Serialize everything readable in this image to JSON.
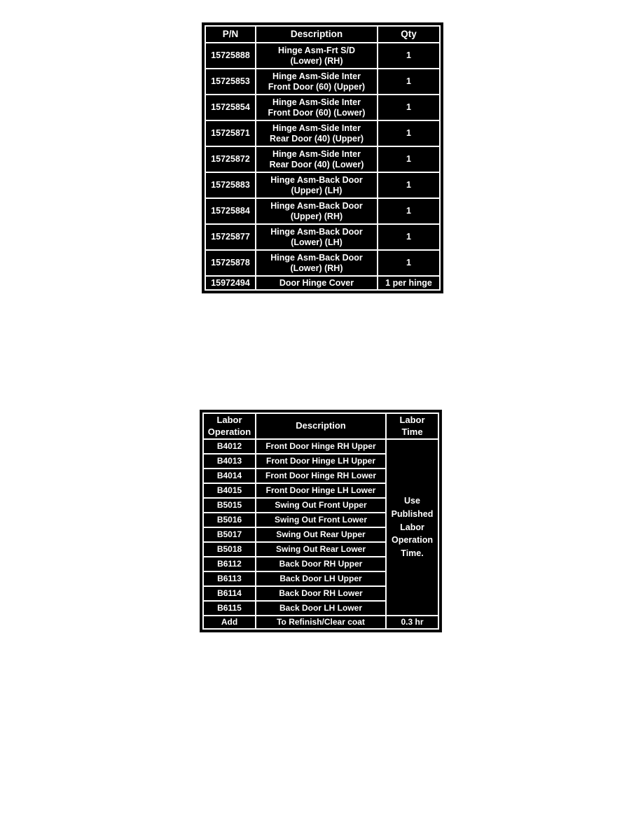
{
  "colors": {
    "page_bg": "#ffffff",
    "table_bg": "#000000",
    "table_border": "#ffffff",
    "table_text": "#ffffff"
  },
  "parts_table": {
    "headers": {
      "pn": "P/N",
      "description": "Description",
      "qty": "Qty"
    },
    "rows": [
      {
        "pn": "15725888",
        "description": "Hinge Asm-Frt S/D\n(Lower) (RH)",
        "qty": "1"
      },
      {
        "pn": "15725853",
        "description": "Hinge Asm-Side Inter\nFront Door (60) (Upper)",
        "qty": "1"
      },
      {
        "pn": "15725854",
        "description": "Hinge Asm-Side Inter\nFront Door (60) (Lower)",
        "qty": "1"
      },
      {
        "pn": "15725871",
        "description": "Hinge Asm-Side Inter\nRear Door (40) (Upper)",
        "qty": "1"
      },
      {
        "pn": "15725872",
        "description": "Hinge Asm-Side Inter\nRear Door (40) (Lower)",
        "qty": "1"
      },
      {
        "pn": "15725883",
        "description": "Hinge Asm-Back Door\n(Upper) (LH)",
        "qty": "1"
      },
      {
        "pn": "15725884",
        "description": "Hinge Asm-Back Door\n(Upper) (RH)",
        "qty": "1"
      },
      {
        "pn": "15725877",
        "description": "Hinge Asm-Back Door\n(Lower) (LH)",
        "qty": "1"
      },
      {
        "pn": "15725878",
        "description": "Hinge Asm-Back Door\n(Lower) (RH)",
        "qty": "1"
      },
      {
        "pn": "15972494",
        "description": "Door Hinge Cover",
        "qty": "1 per hinge"
      }
    ]
  },
  "labor_table": {
    "headers": {
      "op": "Labor\nOperation",
      "description": "Description",
      "time": "Labor\nTime"
    },
    "rows": [
      {
        "op": "B4012",
        "description": "Front Door Hinge RH Upper"
      },
      {
        "op": "B4013",
        "description": "Front Door Hinge LH Upper"
      },
      {
        "op": "B4014",
        "description": "Front Door Hinge RH Lower"
      },
      {
        "op": "B4015",
        "description": "Front Door Hinge LH Lower"
      },
      {
        "op": "B5015",
        "description": "Swing Out Front Upper"
      },
      {
        "op": "B5016",
        "description": "Swing Out Front Lower"
      },
      {
        "op": "B5017",
        "description": "Swing Out Rear Upper"
      },
      {
        "op": "B5018",
        "description": "Swing Out Rear Lower"
      },
      {
        "op": "B6112",
        "description": "Back Door RH Upper"
      },
      {
        "op": "B6113",
        "description": "Back Door LH Upper"
      },
      {
        "op": "B6114",
        "description": "Back Door RH Lower"
      },
      {
        "op": "B6115",
        "description": "Back Door LH Lower"
      }
    ],
    "time_note": "Use\nPublished\nLabor\nOperation\nTime.",
    "add_row": {
      "op": "Add",
      "description": "To Refinish/Clear coat",
      "time": "0.3 hr"
    }
  }
}
